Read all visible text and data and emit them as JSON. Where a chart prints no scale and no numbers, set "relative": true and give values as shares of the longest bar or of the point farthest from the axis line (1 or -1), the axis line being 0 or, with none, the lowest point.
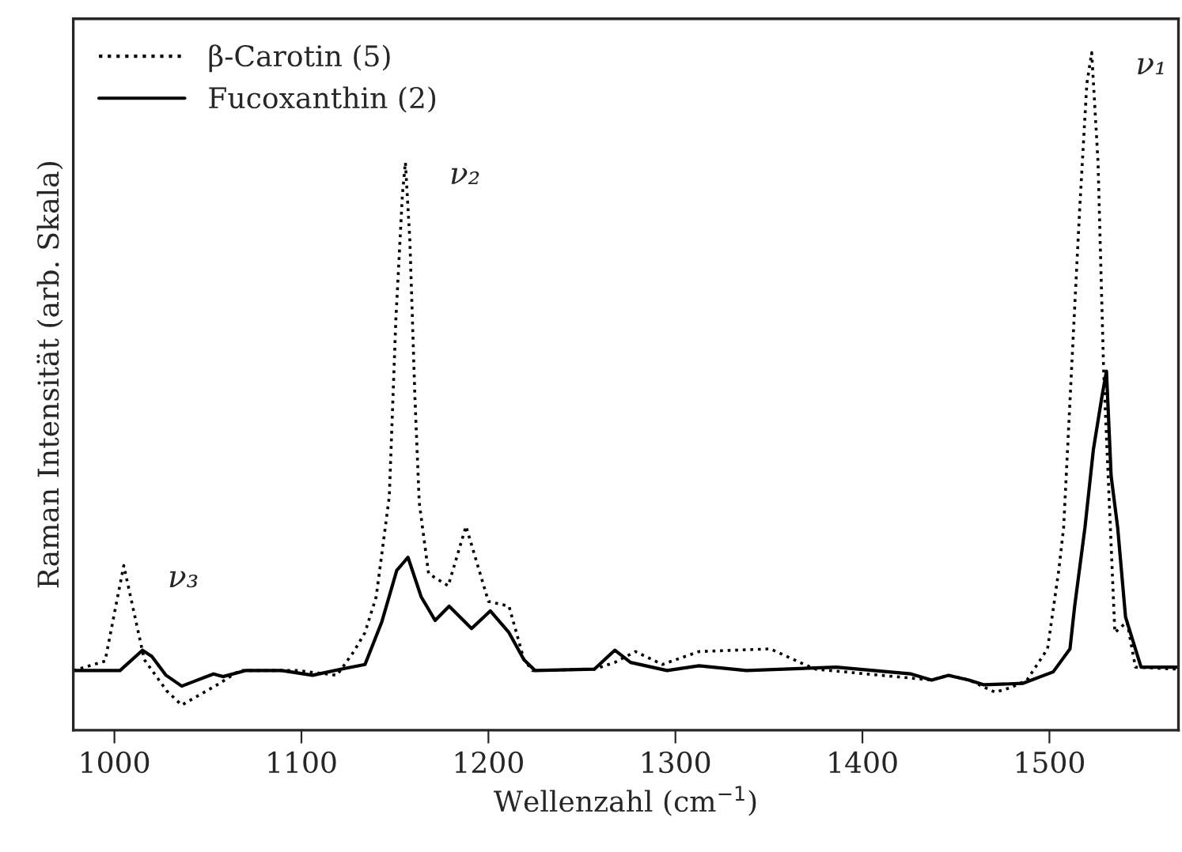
{
  "chart_data": {
    "type": "line",
    "relative": true,
    "xlabel": "Wellenzahl (cm$^{−1}$)",
    "ylabel": "Raman Intensität (arb. Skala)",
    "xlim": [
      978,
      1569
    ],
    "xticks": [
      1000,
      1100,
      1200,
      1300,
      1400,
      1500
    ],
    "tick_labels": "x",
    "grid": false,
    "legend": "top left",
    "marker": "none",
    "series": [
      {
        "name": "β-Carotin (5)",
        "color": "#000000",
        "line_style": "dotted",
        "x": [
          978,
          995,
          1005,
          1011,
          1016,
          1028,
          1036,
          1055,
          1067,
          1098,
          1119,
          1128,
          1134,
          1140,
          1147,
          1150.5,
          1154,
          1155.6,
          1158,
          1160.7,
          1163,
          1168,
          1178.5,
          1188,
          1200,
          1211,
          1219,
          1223.5,
          1256.6,
          1267.6,
          1278.6,
          1293,
          1312.6,
          1350.7,
          1369,
          1375,
          1437,
          1446,
          1457,
          1471,
          1479.6,
          1488,
          1499,
          1505,
          1507.6,
          1511.8,
          1516,
          1520,
          1522.6,
          1526,
          1529,
          1535,
          1541.5,
          1546,
          1569
        ],
        "values": [
          0.088,
          0.102,
          0.243,
          0.167,
          0.104,
          0.058,
          0.037,
          0.067,
          0.088,
          0.088,
          0.081,
          0.116,
          0.144,
          0.197,
          0.345,
          0.606,
          0.79,
          0.838,
          0.722,
          0.491,
          0.336,
          0.231,
          0.213,
          0.301,
          0.19,
          0.183,
          0.104,
          0.088,
          0.09,
          0.1,
          0.116,
          0.097,
          0.116,
          0.12,
          0.097,
          0.09,
          0.074,
          0.081,
          0.074,
          0.056,
          0.063,
          0.074,
          0.12,
          0.236,
          0.299,
          0.53,
          0.76,
          0.954,
          1.0,
          0.838,
          0.53,
          0.144,
          0.16,
          0.093,
          0.09
        ]
      },
      {
        "name": "Fucoxanthin (2)",
        "color": "#000000",
        "line_style": "solid",
        "x": [
          978,
          1003,
          1015,
          1020,
          1027.6,
          1036,
          1044.5,
          1053,
          1058,
          1070,
          1089.5,
          1106,
          1121,
          1134,
          1143,
          1151,
          1157,
          1164,
          1171.5,
          1179,
          1191,
          1201,
          1211,
          1219,
          1225,
          1256.6,
          1267.6,
          1276,
          1295.5,
          1312.6,
          1338,
          1386,
          1426,
          1437,
          1446,
          1457,
          1465,
          1485.6,
          1502,
          1511,
          1513.5,
          1519,
          1523.5,
          1528,
          1530.5,
          1533,
          1536.5,
          1540.7,
          1549,
          1569
        ],
        "values": [
          0.088,
          0.088,
          0.118,
          0.109,
          0.081,
          0.065,
          0.074,
          0.083,
          0.079,
          0.088,
          0.088,
          0.081,
          0.09,
          0.097,
          0.16,
          0.236,
          0.255,
          0.197,
          0.162,
          0.183,
          0.15,
          0.176,
          0.144,
          0.104,
          0.088,
          0.09,
          0.118,
          0.1,
          0.088,
          0.095,
          0.088,
          0.093,
          0.083,
          0.074,
          0.081,
          0.074,
          0.067,
          0.069,
          0.086,
          0.12,
          0.183,
          0.299,
          0.414,
          0.491,
          0.53,
          0.375,
          0.299,
          0.167,
          0.093,
          0.093
        ]
      }
    ],
    "annotations": [
      {
        "text": "ν₁",
        "x": 1522.6,
        "y": 1.0
      },
      {
        "text": "ν₂",
        "x": 1155.6,
        "y": 0.838
      },
      {
        "text": "ν₃",
        "x": 1005,
        "y": 0.243
      }
    ]
  }
}
